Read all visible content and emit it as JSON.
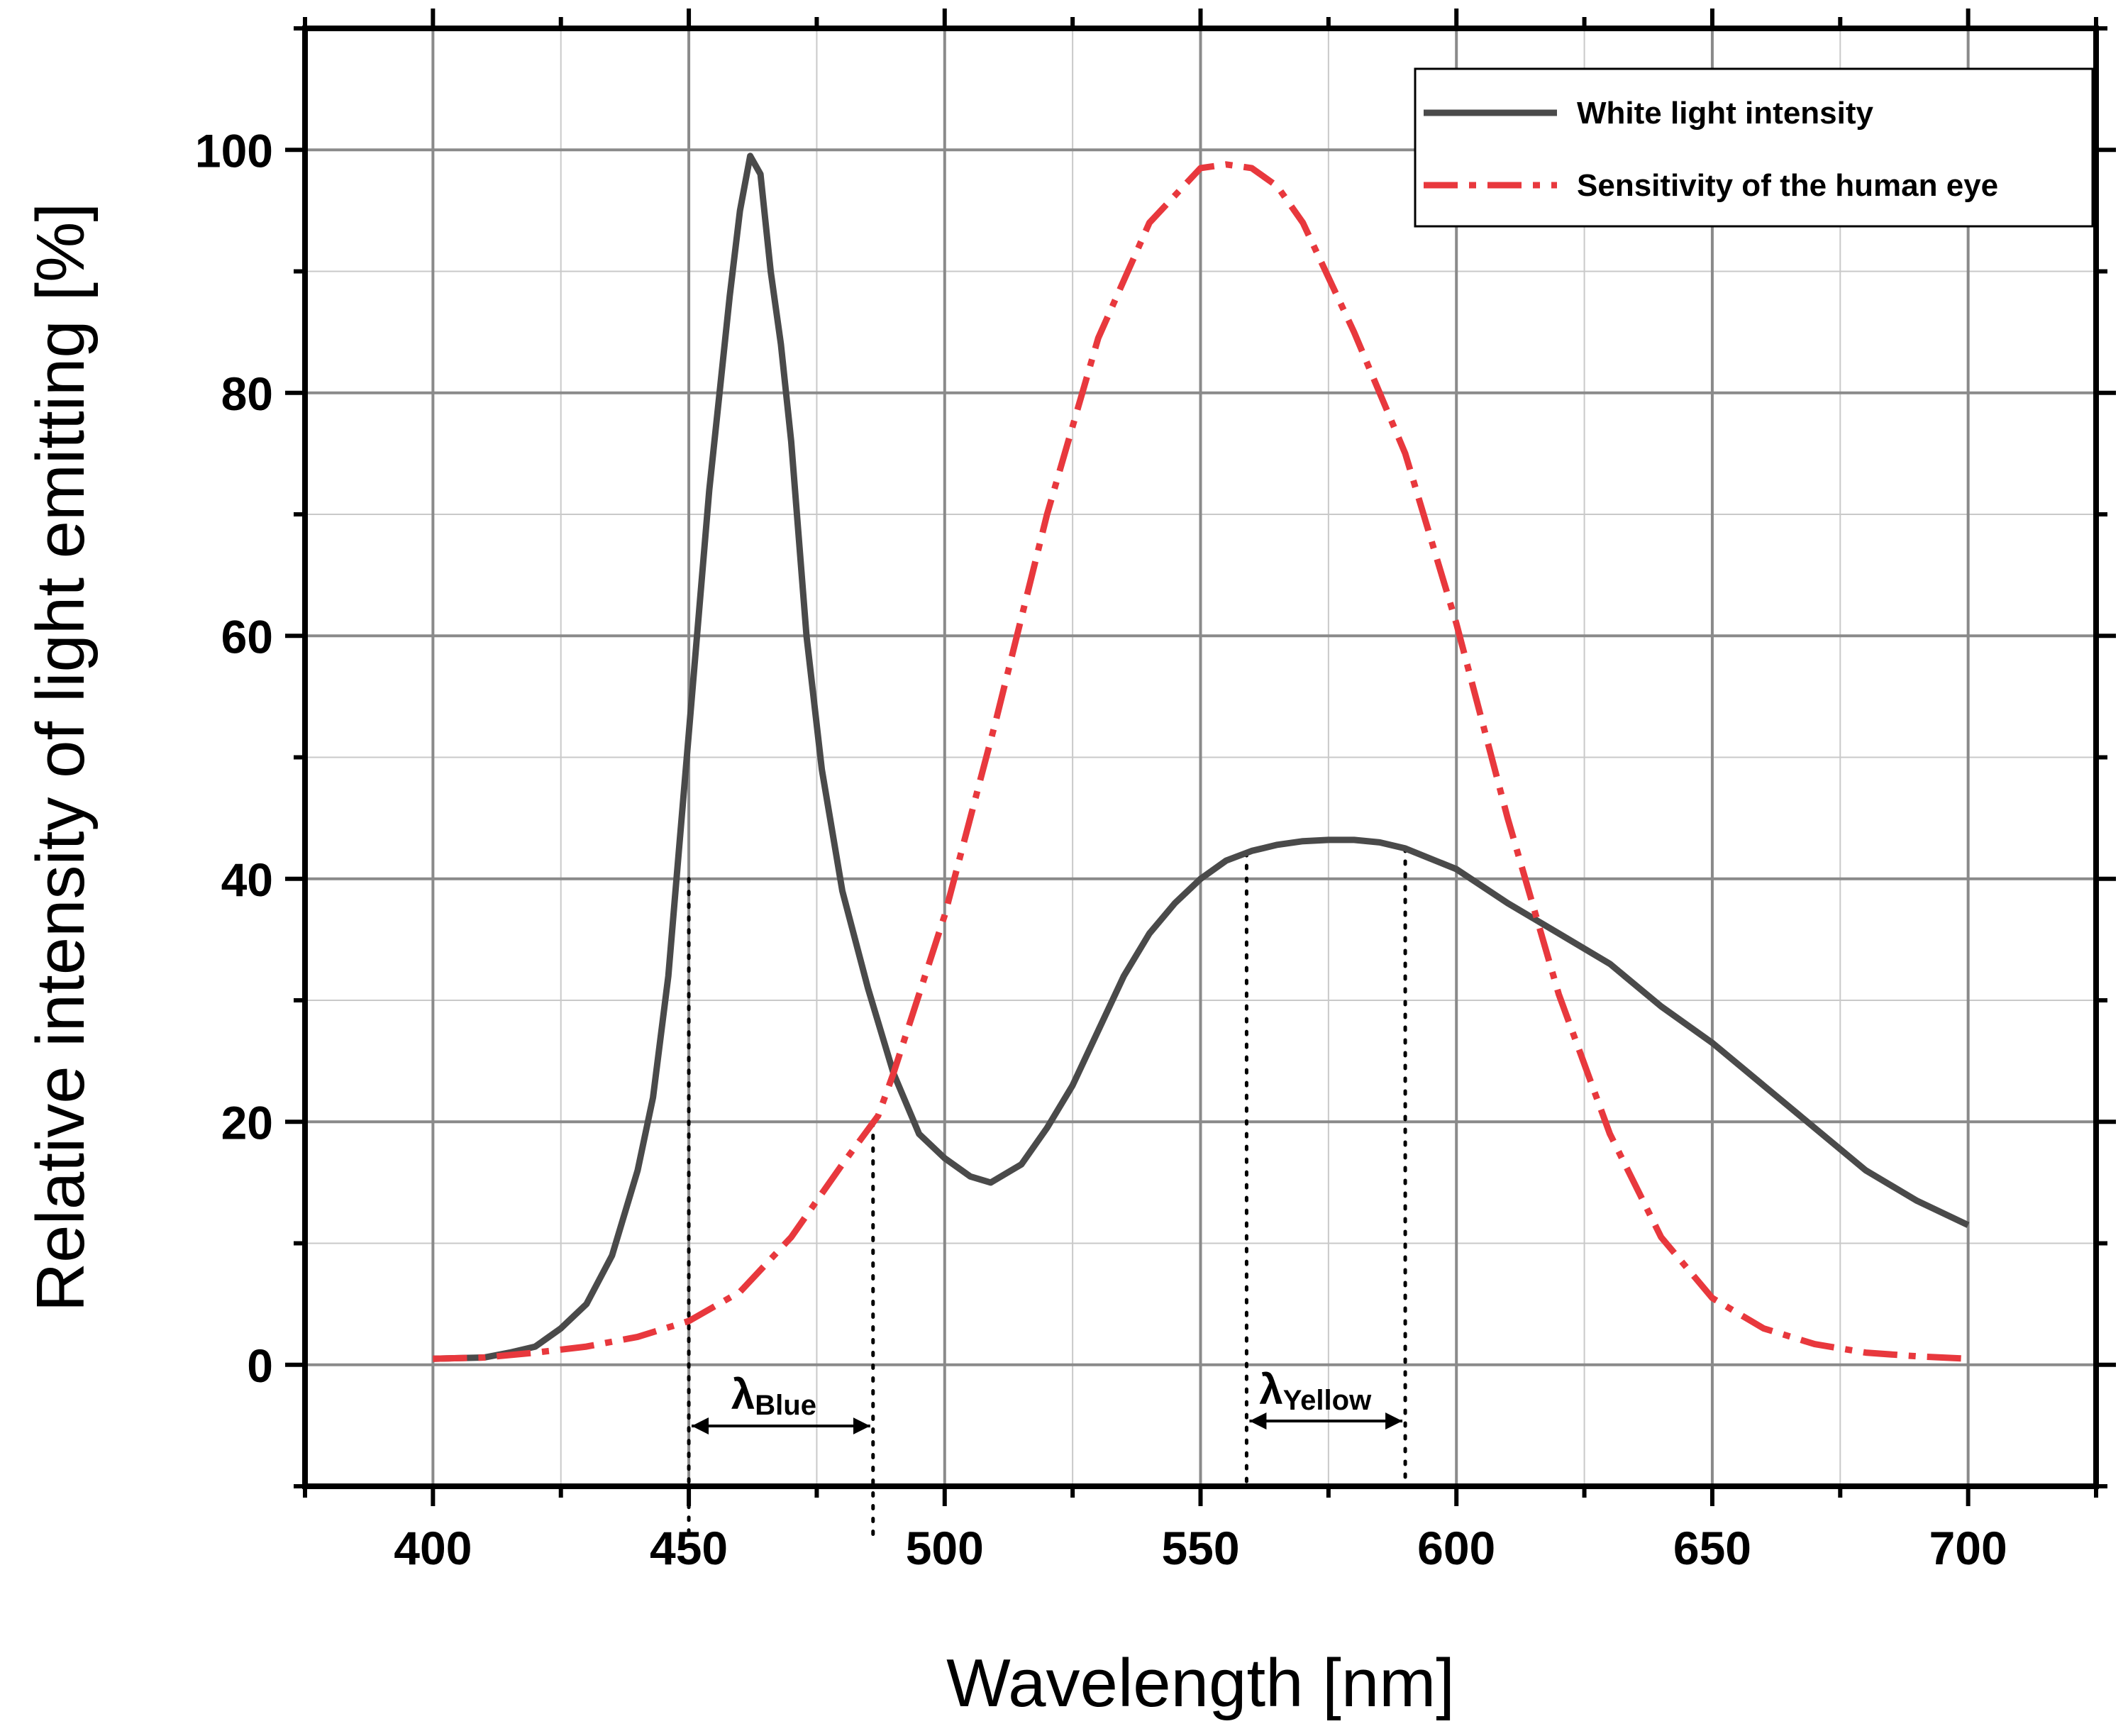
{
  "chart_data": {
    "type": "line",
    "xlabel": "Wavelength [nm]",
    "ylabel": "Relative intensity of light emitting [%]",
    "xlim": [
      375,
      725
    ],
    "ylim": [
      -10,
      110
    ],
    "xticks": [
      400,
      450,
      500,
      550,
      600,
      650,
      700
    ],
    "yticks": [
      0,
      20,
      40,
      60,
      80,
      100
    ],
    "grid": true,
    "legend": "top-right",
    "series": [
      {
        "name": "White light intensity",
        "color": "#4a4a4a",
        "style": "solid",
        "x": [
          400,
          410,
          415,
          420,
          425,
          430,
          435,
          440,
          443,
          446,
          448,
          450,
          452,
          454,
          456,
          458,
          460,
          462,
          464,
          466,
          468,
          470,
          473,
          476,
          480,
          485,
          490,
          495,
          500,
          505,
          509,
          515,
          520,
          525,
          530,
          535,
          540,
          545,
          550,
          555,
          560,
          565,
          570,
          575,
          580,
          585,
          590,
          600,
          610,
          620,
          630,
          640,
          650,
          660,
          670,
          680,
          690,
          700
        ],
        "y": [
          0.5,
          0.6,
          1.0,
          1.5,
          3.0,
          5.0,
          9.0,
          16.0,
          22.0,
          32.0,
          42.0,
          52.0,
          62.0,
          72.0,
          80.0,
          88.0,
          95.0,
          99.5,
          98.0,
          90.0,
          84.0,
          76.0,
          60.0,
          49.0,
          39.0,
          31.0,
          24.0,
          19.0,
          17.0,
          15.5,
          15.0,
          16.5,
          19.5,
          23.0,
          27.5,
          32.0,
          35.5,
          38.0,
          40.0,
          41.5,
          42.3,
          42.8,
          43.1,
          43.2,
          43.2,
          43.0,
          42.5,
          40.8,
          38.0,
          35.5,
          33.0,
          29.5,
          26.5,
          23.0,
          19.5,
          16.0,
          13.5,
          11.5
        ]
      },
      {
        "name": "Sensitivity of the human eye",
        "color": "#e8383d",
        "style": "dash-dot",
        "x": [
          400,
          410,
          420,
          430,
          440,
          450,
          460,
          470,
          480,
          487,
          490,
          500,
          510,
          520,
          530,
          540,
          550,
          555,
          560,
          565,
          570,
          580,
          590,
          600,
          610,
          620,
          630,
          640,
          650,
          660,
          670,
          680,
          690,
          700
        ],
        "y": [
          0.5,
          0.6,
          1.0,
          1.5,
          2.3,
          3.6,
          6.0,
          10.5,
          16.5,
          20.5,
          24.0,
          37.0,
          53.0,
          70.0,
          84.5,
          94.0,
          98.5,
          98.8,
          98.5,
          97.0,
          94.0,
          85.0,
          75.0,
          61.0,
          45.0,
          30.5,
          19.0,
          10.5,
          5.5,
          3.0,
          1.7,
          1.0,
          0.7,
          0.5
        ]
      }
    ],
    "annotations": [
      {
        "kind": "span",
        "from": 450,
        "to": 486,
        "label_main": "λ",
        "label_sub": "Blue"
      },
      {
        "kind": "span",
        "from": 559,
        "to": 590,
        "label_main": "λ",
        "label_sub": "Yellow"
      }
    ]
  }
}
